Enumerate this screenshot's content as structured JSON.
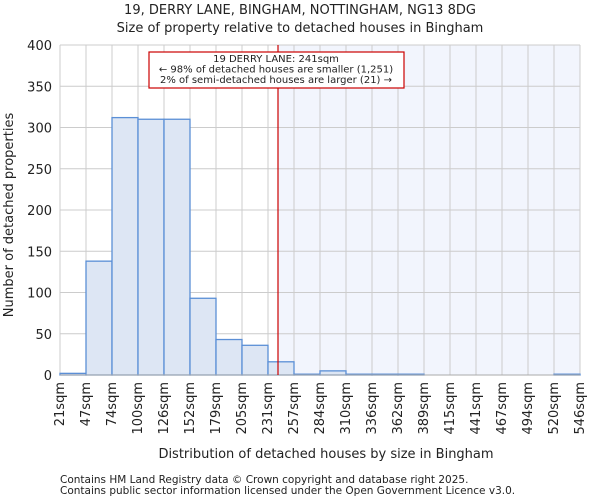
{
  "chart_data": {
    "type": "bar",
    "title": "19, DERRY LANE, BINGHAM, NOTTINGHAM, NG13 8DG",
    "subtitle": "Size of property relative to detached houses in Bingham",
    "xlabel": "Distribution of detached houses by size in Bingham",
    "ylabel": "Number of detached properties",
    "ylim": [
      0,
      400
    ],
    "yticks": [
      0,
      50,
      100,
      150,
      200,
      250,
      300,
      350,
      400
    ],
    "xtick_labels": [
      "21sqm",
      "47sqm",
      "74sqm",
      "100sqm",
      "126sqm",
      "152sqm",
      "179sqm",
      "205sqm",
      "231sqm",
      "257sqm",
      "284sqm",
      "310sqm",
      "336sqm",
      "362sqm",
      "389sqm",
      "415sqm",
      "441sqm",
      "467sqm",
      "494sqm",
      "520sqm",
      "546sqm"
    ],
    "bin_edges": [
      21,
      47,
      74,
      100,
      126,
      152,
      179,
      205,
      231,
      257,
      284,
      310,
      336,
      362,
      389,
      415,
      441,
      467,
      494,
      520,
      546
    ],
    "values": [
      2,
      138,
      312,
      310,
      310,
      93,
      43,
      36,
      16,
      1,
      5,
      1,
      1,
      1,
      0,
      0,
      0,
      0,
      0,
      1
    ],
    "marker": {
      "value": 241,
      "color": "#cc0000"
    },
    "annotation": [
      "19 DERRY LANE: 241sqm",
      "← 98% of detached houses are smaller (1,251)",
      "2% of semi-detached houses are larger (21) →"
    ],
    "grid": true,
    "colors": {
      "bar_fill": "#dde6f4",
      "bar_stroke": "#5b8fd6",
      "highlight": "#f2f5fd"
    }
  },
  "footer": [
    "Contains HM Land Registry data © Crown copyright and database right 2025.",
    "Contains public sector information licensed under the Open Government Licence v3.0."
  ]
}
